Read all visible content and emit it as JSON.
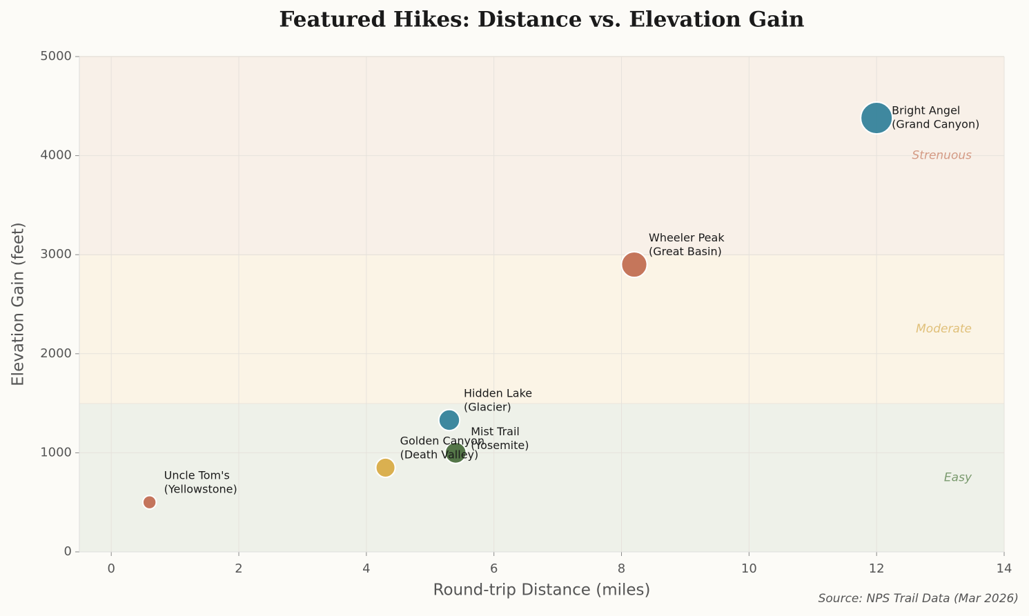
{
  "chart_data": {
    "type": "scatter",
    "title": "Featured Hikes: Distance vs. Elevation Gain",
    "x_label": "Round-trip Distance (miles)",
    "y_label": "Elevation Gain (feet)",
    "source": "Source: NPS Trail Data (Mar 2026)",
    "x": [
      12,
      8.2,
      5.3,
      5.4,
      4.3,
      0.6
    ],
    "values": [
      4380,
      2900,
      1330,
      1000,
      850,
      500
    ],
    "labels": [
      [
        "Bright Angel",
        "(Grand Canyon)"
      ],
      [
        "Wheeler Peak",
        "(Great Basin)"
      ],
      [
        "Hidden Lake",
        "(Glacier)"
      ],
      [
        "Mist Trail",
        "(Yosemite)"
      ],
      [
        "Golden Canyon",
        "(Death Valley)"
      ],
      [
        "Uncle Tom's",
        "(Yellowstone)"
      ]
    ],
    "colors": [
      "#2f7f98",
      "#c06a4f",
      "#2f7f98",
      "#476b3a",
      "#d8aa42",
      "#c06a4f"
    ],
    "zones": [
      {
        "name": "Easy",
        "from": 0,
        "to": 1500,
        "color": "#eef1e9",
        "label_color": "#7a9a6e"
      },
      {
        "name": "Moderate",
        "from": 1500,
        "to": 3000,
        "color": "#fbf4e6",
        "label_color": "#e0c07a"
      },
      {
        "name": "Strenuous",
        "from": 3000,
        "to": 5000,
        "color": "#f8f0e8",
        "label_color": "#d49a84"
      }
    ],
    "xlim": [
      -0.5,
      14
    ],
    "ylim": [
      0,
      5000
    ],
    "xticks": [
      0,
      2,
      4,
      6,
      8,
      10,
      12,
      14
    ],
    "yticks": [
      0,
      1000,
      2000,
      3000,
      4000,
      5000
    ],
    "grid": true
  }
}
